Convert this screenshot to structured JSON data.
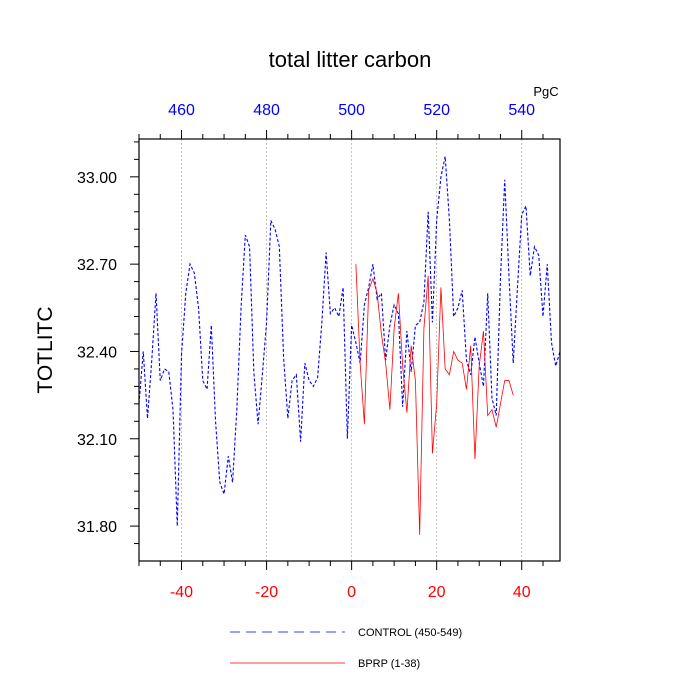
{
  "chart_data": {
    "type": "line",
    "title": "total litter carbon",
    "ylabel": "TOTLITC",
    "units": "PgC",
    "xlim": [
      -50,
      49
    ],
    "ylim": [
      31.68,
      33.13
    ],
    "bottom_axis": {
      "color": "#ff0000",
      "ticks": [
        -40,
        -20,
        0,
        20,
        40
      ],
      "labels": [
        "-40",
        "-20",
        "0",
        "20",
        "40"
      ]
    },
    "top_axis": {
      "color": "#0000ff",
      "ticks": [
        -40,
        -20,
        0,
        20,
        40
      ],
      "labels": [
        "460",
        "480",
        "500",
        "520",
        "540"
      ]
    },
    "y_axis": {
      "ticks": [
        31.8,
        32.1,
        32.4,
        32.7,
        33.0
      ],
      "labels": [
        "31.80",
        "32.10",
        "32.40",
        "32.70",
        "33.00"
      ]
    },
    "vertical_gridlines_at": [
      -40,
      -20,
      0,
      20,
      40
    ],
    "series": [
      {
        "name": "CONTROL (450-549)",
        "color": "#0000ff",
        "style": "dashed",
        "x_start": -50,
        "values": [
          32.22,
          32.4,
          32.17,
          32.37,
          32.6,
          32.3,
          32.34,
          32.33,
          32.2,
          31.8,
          32.39,
          32.6,
          32.7,
          32.67,
          32.55,
          32.3,
          32.27,
          32.49,
          32.16,
          31.95,
          31.91,
          32.04,
          31.95,
          32.2,
          32.55,
          32.8,
          32.76,
          32.33,
          32.15,
          32.32,
          32.5,
          32.85,
          32.82,
          32.76,
          32.38,
          32.17,
          32.3,
          32.32,
          32.09,
          32.36,
          32.3,
          32.28,
          32.31,
          32.5,
          32.74,
          32.53,
          32.55,
          32.52,
          32.62,
          32.1,
          32.49,
          32.43,
          32.36,
          32.56,
          32.62,
          32.7,
          32.58,
          32.6,
          32.37,
          32.49,
          32.56,
          32.53,
          32.21,
          32.47,
          32.33,
          32.49,
          32.5,
          32.57,
          32.88,
          32.5,
          32.85,
          33.0,
          33.07,
          32.85,
          32.52,
          32.55,
          32.61,
          32.37,
          32.32,
          32.45,
          32.36,
          32.28,
          32.6,
          32.24,
          32.18,
          32.65,
          32.99,
          32.66,
          32.36,
          32.62,
          32.87,
          32.9,
          32.66,
          32.76,
          32.73,
          32.52,
          32.7,
          32.43,
          32.35,
          32.4
        ],
        "legend_label": "CONTROL (450-549)"
      },
      {
        "name": "BPRP (1-38)",
        "color": "#ff0000",
        "style": "solid",
        "x_start": 1,
        "values": [
          32.7,
          32.36,
          32.15,
          32.61,
          32.65,
          32.6,
          32.46,
          32.36,
          32.2,
          32.48,
          32.6,
          32.35,
          32.19,
          32.42,
          32.3,
          31.77,
          32.48,
          32.66,
          32.05,
          32.22,
          32.62,
          32.34,
          32.32,
          32.4,
          32.37,
          32.36,
          32.27,
          32.42,
          32.03,
          32.35,
          32.47,
          32.18,
          32.2,
          32.14,
          32.22,
          32.3,
          32.3,
          32.25
        ],
        "legend_label": "BPRP (1-38)"
      }
    ]
  }
}
